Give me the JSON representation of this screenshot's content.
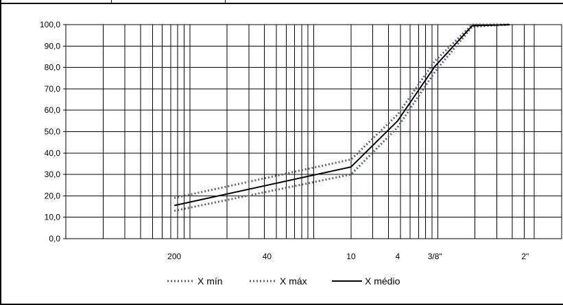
{
  "chart_data": {
    "type": "line",
    "x_scale": "log",
    "x_reversed": true,
    "x_tick_labels": [
      {
        "label": "200",
        "value": 0.075
      },
      {
        "label": "40",
        "value": 0.42
      },
      {
        "label": "10",
        "value": 2.0
      },
      {
        "label": "4",
        "value": 4.75
      },
      {
        "label": "3/8\"",
        "value": 9.5
      },
      {
        "label": "2\"",
        "value": 50.8
      }
    ],
    "x_gridlines": [
      0.01,
      0.02,
      0.03,
      0.04,
      0.05,
      0.06,
      0.07,
      0.08,
      0.09,
      0.1,
      0.2,
      0.3,
      0.4,
      0.5,
      0.6,
      0.7,
      0.8,
      0.9,
      1,
      2,
      3,
      4,
      5,
      6,
      7,
      8,
      9,
      10,
      20,
      30,
      40,
      50,
      60
    ],
    "ylim": [
      0,
      100
    ],
    "y_ticks": [
      "0,0",
      "10,0",
      "20,0",
      "30,0",
      "40,0",
      "50,0",
      "60,0",
      "70,0",
      "80,0",
      "90,0",
      "100,0"
    ],
    "grid": true,
    "legend_position": "bottom",
    "series": [
      {
        "name": "X mín",
        "style": "dotted",
        "color": "#5a6272",
        "points": [
          [
            0.075,
            13
          ],
          [
            2.0,
            30
          ],
          [
            4.75,
            52
          ],
          [
            9.5,
            78
          ],
          [
            19,
            99
          ],
          [
            38.1,
            100
          ]
        ]
      },
      {
        "name": "X máx",
        "style": "dotted",
        "color": "#5a6272",
        "points": [
          [
            0.075,
            19
          ],
          [
            2.0,
            37
          ],
          [
            4.75,
            58
          ],
          [
            9.5,
            83
          ],
          [
            19,
            100
          ],
          [
            38.1,
            100
          ]
        ]
      },
      {
        "name": "X médio",
        "style": "solid",
        "color": "#000000",
        "points": [
          [
            0.075,
            15.5
          ],
          [
            2.0,
            33.5
          ],
          [
            4.75,
            55
          ],
          [
            9.5,
            80.5
          ],
          [
            19,
            99.5
          ],
          [
            38.1,
            100
          ]
        ]
      }
    ]
  }
}
